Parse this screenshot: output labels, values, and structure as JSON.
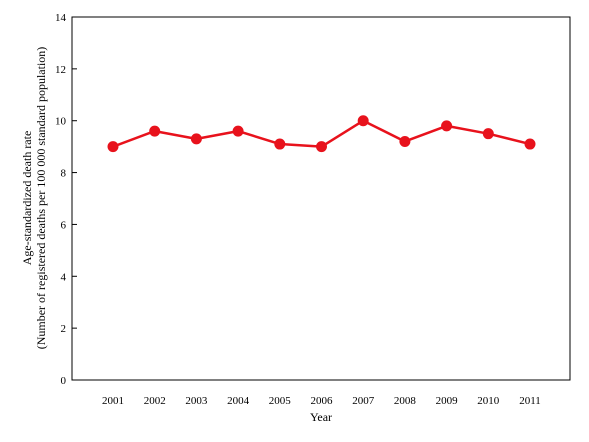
{
  "chart_data": {
    "type": "line",
    "title": "",
    "xlabel": "Year",
    "ylabel": "Age-standardized death rate",
    "ylabel_line2": "(Number of registered deaths per 100 000 standard population)",
    "categories": [
      "2001",
      "2002",
      "2003",
      "2004",
      "2005",
      "2006",
      "2007",
      "2008",
      "2009",
      "2010",
      "2011"
    ],
    "series": [
      {
        "values": [
          9.0,
          9.6,
          9.3,
          9.6,
          9.1,
          9.0,
          10.0,
          9.2,
          9.8,
          9.5,
          9.1
        ]
      }
    ],
    "ylim": [
      0,
      14
    ],
    "yticks": [
      0,
      2,
      4,
      6,
      8,
      10,
      12,
      14
    ],
    "grid": false,
    "legend": "none",
    "line_color": "#e8121c",
    "marker": "circle"
  }
}
